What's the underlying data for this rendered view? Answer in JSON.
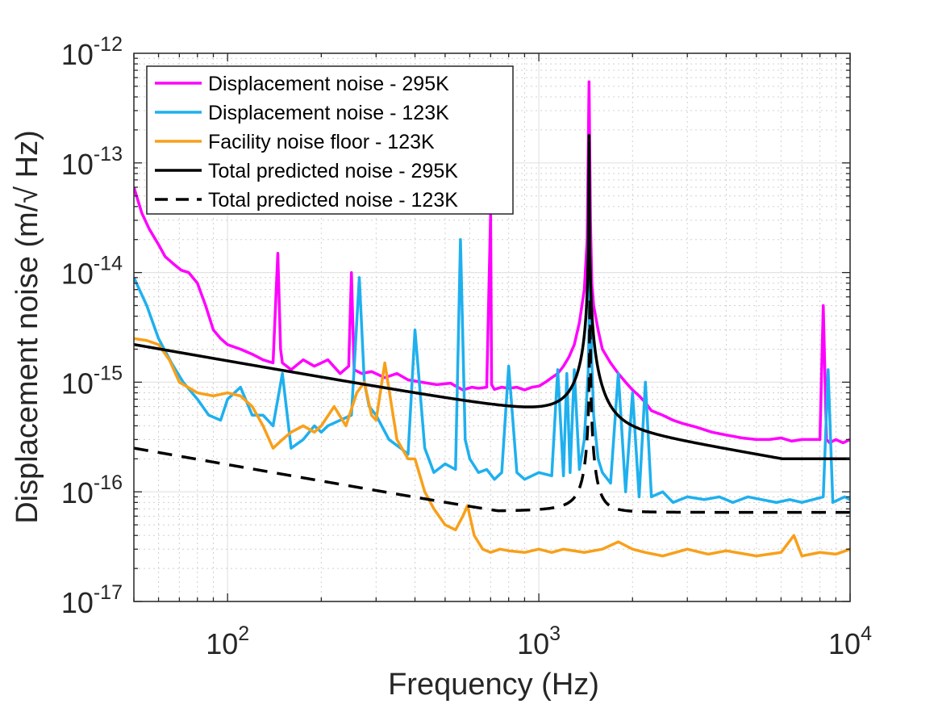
{
  "chart_data": {
    "type": "line",
    "xscale": "log",
    "yscale": "log",
    "xlabel": "Frequency (Hz)",
    "ylabel": "Displacement noise (m/√ Hz)",
    "xlim": [
      50,
      10000
    ],
    "ylim": [
      1e-17,
      1e-12
    ],
    "grid": true,
    "legend_position": "top-left",
    "x_ticks": [
      {
        "value": 100,
        "base": "10",
        "exp": "2"
      },
      {
        "value": 1000,
        "base": "10",
        "exp": "3"
      },
      {
        "value": 10000,
        "base": "10",
        "exp": "4"
      }
    ],
    "y_ticks": [
      {
        "value": 1e-12,
        "base": "10",
        "exp": "-12"
      },
      {
        "value": 1e-13,
        "base": "10",
        "exp": "-13"
      },
      {
        "value": 1e-14,
        "base": "10",
        "exp": "-14"
      },
      {
        "value": 1e-15,
        "base": "10",
        "exp": "-15"
      },
      {
        "value": 1e-16,
        "base": "10",
        "exp": "-16"
      },
      {
        "value": 1e-17,
        "base": "10",
        "exp": "-17"
      }
    ],
    "series": [
      {
        "name": "Displacement noise - 295K",
        "color": "#ff00ff",
        "style": "solid",
        "x": [
          50,
          53,
          56,
          60,
          63,
          67,
          71,
          75,
          80,
          85,
          90,
          95,
          100,
          110,
          120,
          130,
          140,
          145,
          148,
          150,
          160,
          175,
          190,
          210,
          230,
          245,
          250,
          255,
          270,
          290,
          320,
          350,
          380,
          420,
          470,
          520,
          570,
          610,
          640,
          680,
          700,
          705,
          720,
          760,
          800,
          850,
          900,
          950,
          1000,
          1050,
          1100,
          1150,
          1200,
          1250,
          1300,
          1350,
          1400,
          1430,
          1450,
          1465,
          1480,
          1500,
          1550,
          1600,
          1700,
          1800,
          1900,
          2000,
          2100,
          2200,
          2300,
          2500,
          2700,
          2900,
          3200,
          3600,
          4000,
          4500,
          5000,
          5500,
          6000,
          6500,
          7000,
          7500,
          8000,
          8200,
          8400,
          8600,
          9000,
          9500,
          10000
        ],
        "y": [
          6e-14,
          3.5e-14,
          2.5e-14,
          1.8e-14,
          1.4e-14,
          1.2e-14,
          1.05e-14,
          1e-14,
          8e-15,
          5e-15,
          3e-15,
          2.5e-15,
          2.2e-15,
          2e-15,
          1.8e-15,
          1.6e-15,
          1.5e-15,
          1.5e-14,
          2e-15,
          1.5e-15,
          1.3e-15,
          1.6e-15,
          1.4e-15,
          1.6e-15,
          1.2e-15,
          1.4e-15,
          1e-14,
          1.3e-15,
          1.2e-15,
          1.25e-15,
          1.1e-15,
          1.2e-15,
          1.05e-15,
          1e-15,
          9.5e-16,
          9.8e-16,
          8.5e-16,
          9e-16,
          8.8e-16,
          9e-16,
          3.5e-14,
          9.5e-16,
          8.6e-16,
          9e-16,
          8.8e-16,
          9e-16,
          8.5e-16,
          9e-16,
          9.2e-16,
          1e-15,
          1.1e-15,
          1.2e-15,
          1.4e-15,
          1.7e-15,
          2.2e-15,
          3.5e-15,
          7e-15,
          2e-14,
          5.5e-13,
          3e-14,
          8e-15,
          5e-15,
          3e-15,
          2e-15,
          1.5e-15,
          1.2e-15,
          1e-15,
          8.5e-16,
          7.5e-16,
          6.5e-16,
          5.5e-16,
          5e-16,
          4.5e-16,
          4.2e-16,
          3.9e-16,
          3.5e-16,
          3.3e-16,
          3.1e-16,
          3e-16,
          3e-16,
          3.1e-16,
          2.9e-16,
          3e-16,
          3e-16,
          3e-16,
          5e-15,
          3e-16,
          2.8e-16,
          3e-16,
          2.8e-16,
          3e-16
        ]
      },
      {
        "name": "Displacement noise - 123K",
        "color": "#1fb0ee",
        "style": "solid",
        "x": [
          50,
          55,
          60,
          66,
          72,
          80,
          87,
          95,
          100,
          110,
          120,
          130,
          140,
          150,
          160,
          175,
          190,
          200,
          210,
          230,
          250,
          265,
          275,
          285,
          300,
          330,
          360,
          380,
          400,
          430,
          460,
          500,
          540,
          560,
          580,
          600,
          640,
          680,
          720,
          760,
          800,
          850,
          900,
          1000,
          1100,
          1150,
          1200,
          1230,
          1260,
          1300,
          1350,
          1400,
          1440,
          1460,
          1480,
          1500,
          1550,
          1600,
          1700,
          1800,
          1900,
          2000,
          2100,
          2200,
          2300,
          2500,
          2700,
          3000,
          3400,
          3800,
          4200,
          4700,
          5200,
          5800,
          6400,
          7000,
          7600,
          8200,
          8500,
          8800,
          9200,
          9600,
          10000
        ],
        "y": [
          9e-15,
          5e-15,
          2.5e-15,
          1.5e-15,
          1e-15,
          7e-16,
          5e-16,
          4.5e-16,
          7e-16,
          9e-16,
          5e-16,
          5e-16,
          4e-16,
          1.2e-15,
          2.5e-16,
          3e-16,
          4e-16,
          3.5e-16,
          4e-16,
          4.5e-16,
          5e-16,
          9e-15,
          1e-15,
          6e-16,
          5e-16,
          3e-16,
          2.5e-16,
          2.2e-16,
          3e-15,
          2.5e-16,
          1.5e-16,
          1.8e-16,
          1.6e-16,
          2e-14,
          3e-16,
          2e-16,
          1.5e-16,
          1.6e-16,
          1.3e-16,
          1.5e-16,
          1.4e-15,
          1.5e-16,
          1.3e-16,
          1.5e-16,
          1.4e-16,
          1.3e-15,
          1.4e-16,
          1.2e-15,
          1.5e-16,
          1.3e-15,
          1.6e-16,
          3e-16,
          1.2e-15,
          1e-14,
          1.5e-15,
          5e-16,
          2e-16,
          1.5e-16,
          1.2e-16,
          1.2e-15,
          1e-16,
          8e-16,
          9e-17,
          1e-15,
          9e-17,
          1e-16,
          8e-17,
          9e-17,
          8.5e-17,
          9e-17,
          8e-17,
          9e-17,
          8.5e-17,
          8e-17,
          8.5e-17,
          8e-17,
          8.5e-17,
          9e-17,
          1.3e-15,
          8e-17,
          8.5e-17,
          9e-17,
          8.5e-17
        ]
      },
      {
        "name": "Facility noise floor - 123K",
        "color": "#f8a01a",
        "style": "solid",
        "x": [
          50,
          55,
          60,
          65,
          70,
          80,
          90,
          100,
          110,
          120,
          130,
          140,
          150,
          160,
          175,
          190,
          200,
          220,
          240,
          260,
          275,
          290,
          300,
          320,
          350,
          380,
          400,
          430,
          460,
          500,
          540,
          570,
          590,
          620,
          660,
          700,
          750,
          800,
          900,
          1000,
          1100,
          1200,
          1400,
          1600,
          1800,
          2000,
          2200,
          2500,
          3000,
          3500,
          4000,
          5000,
          6000,
          6600,
          7000,
          8000,
          9000,
          10000
        ],
        "y": [
          2.5e-15,
          2.4e-15,
          2.2e-15,
          1.6e-15,
          1e-15,
          8e-16,
          7.5e-16,
          8e-16,
          7.5e-16,
          6e-16,
          4e-16,
          2.5e-16,
          3e-16,
          3.5e-16,
          4e-16,
          3.5e-16,
          4e-16,
          6e-16,
          4e-16,
          8e-16,
          1e-15,
          5e-16,
          4.5e-16,
          1.5e-15,
          3e-16,
          2e-16,
          2e-16,
          1e-16,
          7e-17,
          5e-17,
          4.5e-17,
          6e-17,
          7.5e-17,
          4e-17,
          3e-17,
          2.8e-17,
          3e-17,
          2.9e-17,
          2.8e-17,
          3e-17,
          2.8e-17,
          3e-17,
          2.8e-17,
          3e-17,
          3.5e-17,
          3e-17,
          2.8e-17,
          2.6e-17,
          3e-17,
          2.7e-17,
          2.9e-17,
          2.6e-17,
          2.8e-17,
          4e-17,
          2.6e-17,
          2.8e-17,
          2.7e-17,
          3e-17
        ]
      },
      {
        "name": "Total predicted noise - 295K",
        "color": "#000000",
        "style": "solid",
        "model": {
          "floor_low": 2.2e-15,
          "floor_low_freq": 50,
          "floor_low_slope": -0.5,
          "floor_high": 2e-16,
          "peak_freq": 1450,
          "q": 1000,
          "peak_weight": 1.0,
          "extra": 1.8e-16
        }
      },
      {
        "name": "Total predicted noise - 123K",
        "color": "#000000",
        "style": "dashed",
        "model": {
          "floor_low": 2.5e-16,
          "floor_low_freq": 50,
          "floor_low_slope": -0.5,
          "floor_high": 6.5e-17,
          "peak_freq": 1460,
          "q": 900,
          "peak_weight": 0.25,
          "extra": 5e-17
        }
      }
    ]
  }
}
